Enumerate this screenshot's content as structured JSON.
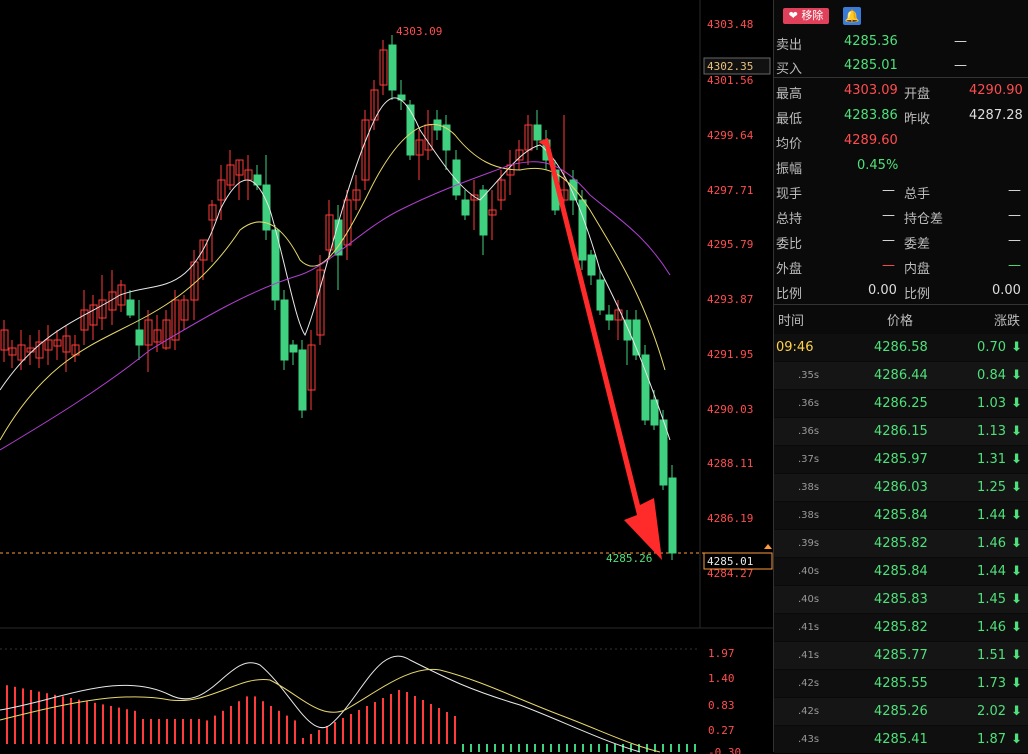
{
  "chart": {
    "price_axis": [
      "4303.48",
      "4301.56",
      "4299.64",
      "4297.71",
      "4295.79",
      "4293.87",
      "4291.95",
      "4290.03",
      "4288.11",
      "4286.19",
      "4284.27"
    ],
    "cursor_price_label": "4302.35",
    "current_price_label": "4285.01",
    "high_annotation": "4303.09",
    "last_annotation": "4285.26",
    "indicator_axis": [
      "1.97",
      "1.40",
      "0.83",
      "0.27",
      "-0.30"
    ],
    "colors": {
      "up": "#ff3b3b",
      "down": "#3fd080",
      "ma_white": "#e8e8e8",
      "ma_yellow": "#e6d86a",
      "ma_purple": "#b040d0",
      "arrow": "#ff2a2a"
    }
  },
  "panel": {
    "buttons": {
      "remove_label": "移除",
      "bell_icon": "bell-icon",
      "heart_icon": "heart-icon"
    },
    "sell": {
      "label": "卖出",
      "value": "4285.36",
      "extra": "—"
    },
    "buy": {
      "label": "买入",
      "value": "4285.01",
      "extra": "—"
    },
    "high": {
      "label": "最高",
      "value": "4303.09"
    },
    "open": {
      "label": "开盘",
      "value": "4290.90"
    },
    "low": {
      "label": "最低",
      "value": "4283.86"
    },
    "prev_close": {
      "label": "昨收",
      "value": "4287.28"
    },
    "avg": {
      "label": "均价",
      "value": "4289.60"
    },
    "amplitude": {
      "label": "振幅",
      "value": "0.45%"
    },
    "cur_vol": {
      "label": "现手",
      "value": "—"
    },
    "total_vol": {
      "label": "总手",
      "value": "—"
    },
    "total_hold": {
      "label": "总持",
      "value": "—"
    },
    "hold_diff": {
      "label": "持仓差",
      "value": "—"
    },
    "bid_ratio": {
      "label": "委比",
      "value": "—"
    },
    "bid_diff": {
      "label": "委差",
      "value": "—"
    },
    "outer": {
      "label": "外盘",
      "value": "—"
    },
    "inner": {
      "label": "内盘",
      "value": "—"
    },
    "ratio1": {
      "label": "比例",
      "value": "0.00"
    },
    "ratio2": {
      "label": "比例",
      "value": "0.00"
    },
    "ticks_header": {
      "time": "时间",
      "price": "价格",
      "change": "涨跌"
    },
    "ticks": [
      {
        "time": "09:46",
        "price": "4286.58",
        "change": "0.70",
        "arrow": "⬇"
      },
      {
        "time": ".35s",
        "price": "4286.44",
        "change": "0.84",
        "arrow": "⬇"
      },
      {
        "time": ".36s",
        "price": "4286.25",
        "change": "1.03",
        "arrow": "⬇"
      },
      {
        "time": ".36s",
        "price": "4286.15",
        "change": "1.13",
        "arrow": "⬇"
      },
      {
        "time": ".37s",
        "price": "4285.97",
        "change": "1.31",
        "arrow": "⬇"
      },
      {
        "time": ".38s",
        "price": "4286.03",
        "change": "1.25",
        "arrow": "⬇"
      },
      {
        "time": ".38s",
        "price": "4285.84",
        "change": "1.44",
        "arrow": "⬇"
      },
      {
        "time": ".39s",
        "price": "4285.82",
        "change": "1.46",
        "arrow": "⬇"
      },
      {
        "time": ".40s",
        "price": "4285.84",
        "change": "1.44",
        "arrow": "⬇"
      },
      {
        "time": ".40s",
        "price": "4285.83",
        "change": "1.45",
        "arrow": "⬇"
      },
      {
        "time": ".41s",
        "price": "4285.82",
        "change": "1.46",
        "arrow": "⬇"
      },
      {
        "time": ".41s",
        "price": "4285.77",
        "change": "1.51",
        "arrow": "⬇"
      },
      {
        "time": ".42s",
        "price": "4285.55",
        "change": "1.73",
        "arrow": "⬇"
      },
      {
        "time": ".42s",
        "price": "4285.26",
        "change": "2.02",
        "arrow": "⬇"
      },
      {
        "time": ".43s",
        "price": "4285.41",
        "change": "1.87",
        "arrow": "⬇"
      }
    ]
  }
}
